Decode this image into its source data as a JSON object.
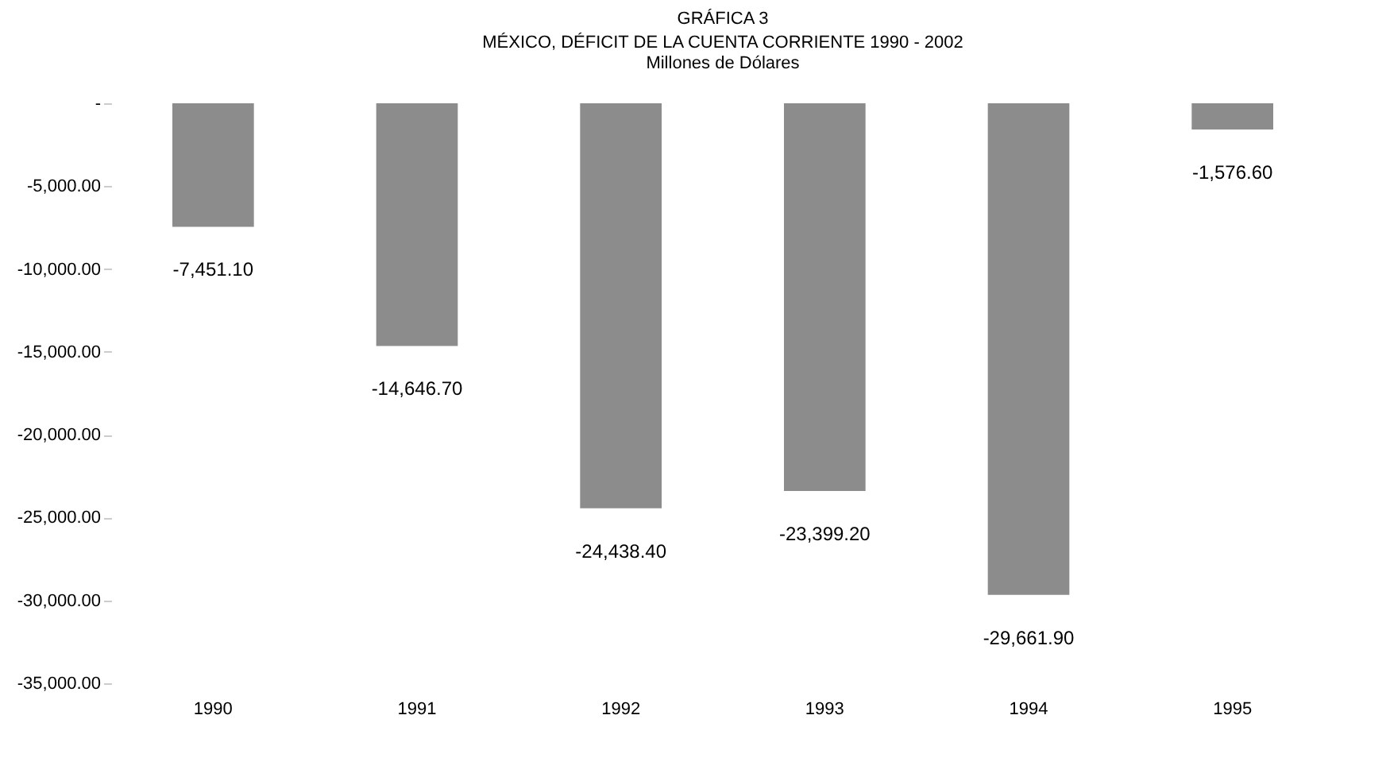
{
  "chart_data": {
    "type": "bar",
    "title": "GRÁFICA 3",
    "subtitle": "MÉXICO, DÉFICIT DE LA CUENTA CORRIENTE 1990 - 2002",
    "annotations": [
      "Millones de Dólares"
    ],
    "categories": [
      "1990",
      "1991",
      "1992",
      "1993",
      "1994",
      "1995"
    ],
    "values": [
      -7451.1,
      -14646.7,
      -24438.4,
      -23399.2,
      -29661.9,
      -1576.6
    ],
    "value_labels": [
      "-7,451.10",
      "-14,646.70",
      "-24,438.40",
      "-23,399.20",
      "-29,661.90",
      "-1,576.60"
    ],
    "color": "#8c8c8c",
    "ylim": [
      -35000,
      0
    ],
    "yticks": [
      {
        "value": 0,
        "label": "-"
      },
      {
        "value": -5000,
        "label": "-5,000.00"
      },
      {
        "value": -10000,
        "label": "-10,000.00"
      },
      {
        "value": -15000,
        "label": "-15,000.00"
      },
      {
        "value": -20000,
        "label": "-20,000.00"
      },
      {
        "value": -25000,
        "label": "-25,000.00"
      },
      {
        "value": -30000,
        "label": "-30,000.00"
      },
      {
        "value": -35000,
        "label": "-35,000.00"
      }
    ],
    "grid": false
  }
}
